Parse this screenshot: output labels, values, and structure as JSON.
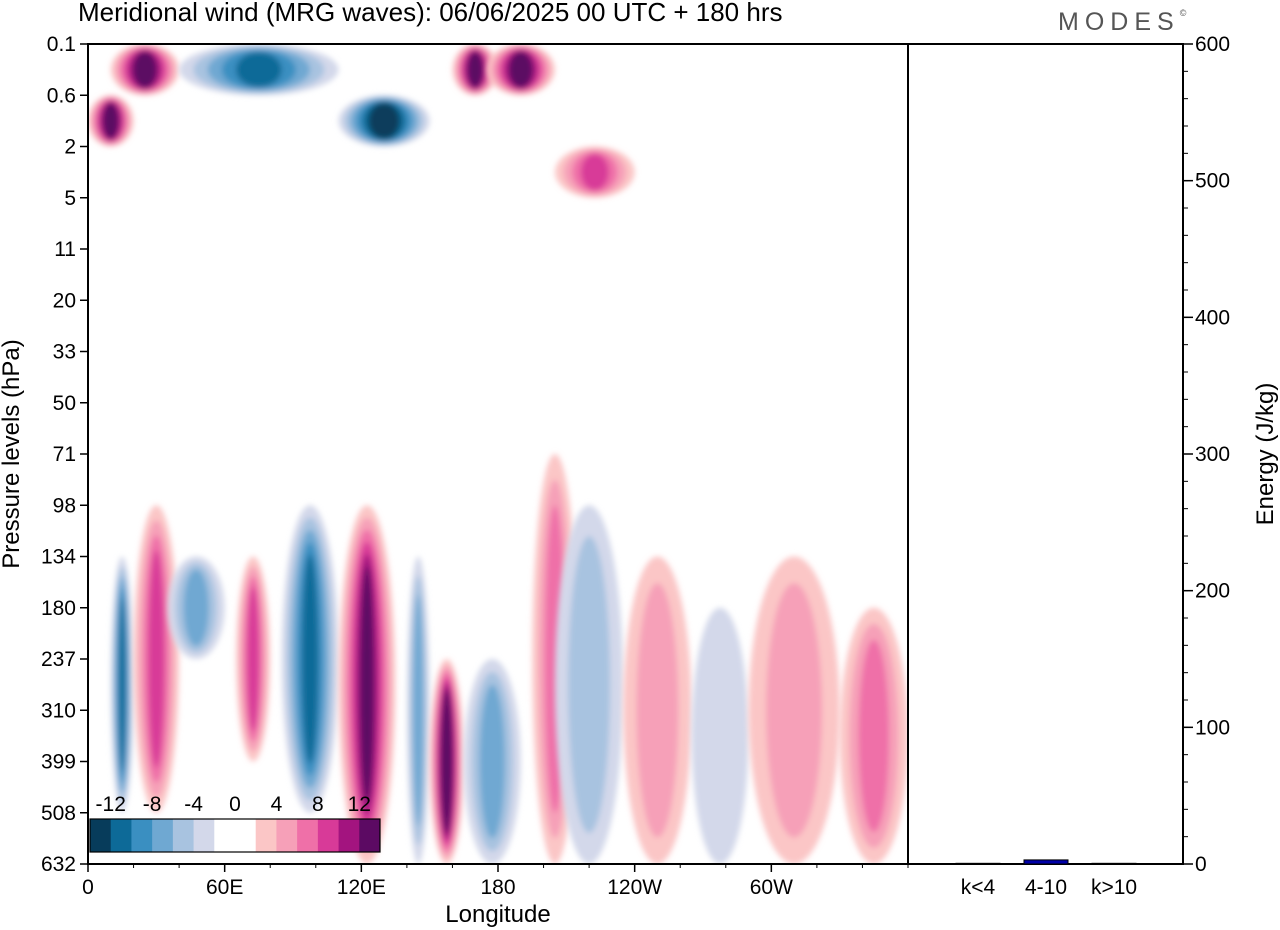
{
  "header": {
    "title": "Meridional wind (MRG waves):  06/06/2025  00 UTC  + 180 hrs",
    "logo": "MODES",
    "logo_mark": "©"
  },
  "chart_data": [
    {
      "type": "heatmap",
      "title": "Meridional wind (MRG waves):  06/06/2025  00 UTC  + 180 hrs",
      "xlabel": "Longitude",
      "ylabel": "Pressure levels (hPa)",
      "x_ticks": [
        "0",
        "60E",
        "120E",
        "180",
        "120W",
        "60W"
      ],
      "x_tick_degrees": [
        0,
        60,
        120,
        180,
        240,
        300
      ],
      "xlim": [
        0,
        360
      ],
      "y_ticks": [
        "0.1",
        "0.6",
        "2",
        "5",
        "11",
        "20",
        "33",
        "50",
        "71",
        "98",
        "134",
        "180",
        "237",
        "310",
        "399",
        "508",
        "632"
      ],
      "y_scale": "model levels (log-pressure)",
      "colorbar": {
        "labels": [
          "-12",
          "-8",
          "-4",
          "0",
          "4",
          "8",
          "12"
        ],
        "label_levels": [
          -12,
          -8,
          -4,
          0,
          4,
          8,
          12
        ],
        "colors": [
          "#073c5b",
          "#0d6a98",
          "#3a8fc1",
          "#6fa8d2",
          "#a8c3e0",
          "#d3d8ea",
          "#ffffff",
          "#ffffff",
          "#fbc6c6",
          "#f6a0b8",
          "#ef70a8",
          "#d83a98",
          "#a3147f",
          "#5c0a63"
        ],
        "placement": "bottom-left"
      },
      "features": [
        {
          "sign": "positive",
          "lon": [
            10,
            40
          ],
          "level": "0.1-0.6",
          "peak": 14
        },
        {
          "sign": "negative",
          "lon": [
            40,
            110
          ],
          "level": "0.1-0.6",
          "peak": -10
        },
        {
          "sign": "positive",
          "lon": [
            0,
            20
          ],
          "level": "0.6-2",
          "peak": 14
        },
        {
          "sign": "negative",
          "lon": [
            110,
            150
          ],
          "level": "0.6-2",
          "peak": -14
        },
        {
          "sign": "positive",
          "lon": [
            160,
            180
          ],
          "level": "0.1-0.6",
          "peak": 14
        },
        {
          "sign": "positive",
          "lon": [
            175,
            205
          ],
          "level": "0.1-0.6",
          "peak": 14
        },
        {
          "sign": "positive",
          "lon": [
            205,
            240
          ],
          "level": "2-5",
          "peak": 8
        },
        {
          "sign": "negative",
          "lon": [
            10,
            20
          ],
          "level": "134-508",
          "peak": -10
        },
        {
          "sign": "positive",
          "lon": [
            20,
            40
          ],
          "level": "98-508",
          "peak": 8
        },
        {
          "sign": "negative",
          "lon": [
            35,
            60
          ],
          "level": "134-237",
          "peak": -6
        },
        {
          "sign": "positive",
          "lon": [
            65,
            80
          ],
          "level": "134-399",
          "peak": 8
        },
        {
          "sign": "negative",
          "lon": [
            85,
            110
          ],
          "level": "98-508",
          "peak": -10
        },
        {
          "sign": "positive",
          "lon": [
            110,
            135
          ],
          "level": "98-632",
          "peak": 12
        },
        {
          "sign": "negative",
          "lon": [
            140,
            150
          ],
          "level": "134-632",
          "peak": -6
        },
        {
          "sign": "positive",
          "lon": [
            150,
            165
          ],
          "level": "237-632",
          "peak": 14
        },
        {
          "sign": "negative",
          "lon": [
            165,
            190
          ],
          "level": "237-632",
          "peak": -6
        },
        {
          "sign": "positive",
          "lon": [
            195,
            215
          ],
          "level": "71-632",
          "peak": 6
        },
        {
          "sign": "negative",
          "lon": [
            205,
            235
          ],
          "level": "98-632",
          "peak": -4
        },
        {
          "sign": "positive",
          "lon": [
            235,
            265
          ],
          "level": "134-632",
          "peak": 4
        },
        {
          "sign": "negative",
          "lon": [
            265,
            290
          ],
          "level": "180-632",
          "peak": -2
        },
        {
          "sign": "positive",
          "lon": [
            290,
            330
          ],
          "level": "134-632",
          "peak": 4
        },
        {
          "sign": "positive",
          "lon": [
            330,
            360
          ],
          "level": "180-632",
          "peak": 6
        }
      ]
    },
    {
      "type": "bar",
      "categories": [
        "k<4",
        "4-10",
        "k>10"
      ],
      "values": [
        0.5,
        3,
        0.5
      ],
      "ylabel": "Energy (J/kg)",
      "ylim": [
        0,
        600
      ],
      "y_ticks": [
        "0",
        "100",
        "200",
        "300",
        "400",
        "500",
        "600"
      ],
      "bar_color": "#0000a8"
    }
  ]
}
